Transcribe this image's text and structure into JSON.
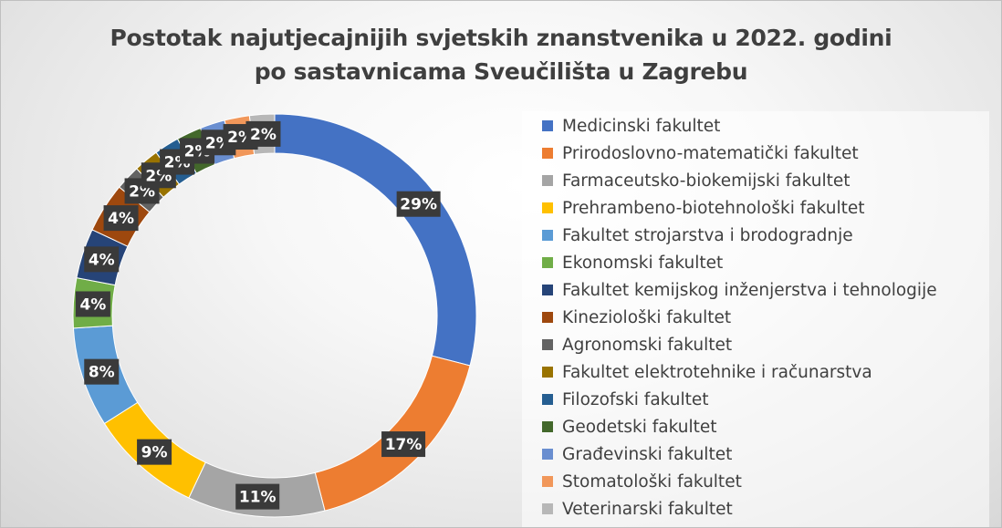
{
  "title": {
    "line1": "Postotak najutjecajnijih  svjetskih znanstvenika u 2022. godini",
    "line2": "po sastavnicama Sveučilišta u Zagrebu"
  },
  "chart_data": {
    "type": "pie",
    "variant": "doughnut",
    "title": "Postotak najutjecajnijih  svjetskih znanstvenika u 2022. godini po sastavnicama Sveučilišta u Zagrebu",
    "legend_position": "right",
    "categories": [
      "Medicinski fakultet",
      "Prirodoslovno-matematički fakultet",
      "Farmaceutsko-biokemijski fakultet",
      "Prehrambeno-biotehnološki fakultet",
      "Fakultet strojarstva i brodogradnje",
      "Ekonomski fakultet",
      "Fakultet kemijskog inženjerstva i tehnologije",
      "Kineziološki fakultet",
      "Agronomski fakultet",
      "Fakultet elektrotehnike i računarstva",
      "Filozofski fakultet",
      "Geodetski fakultet",
      "Građevinski fakultet",
      "Stomatološki fakultet",
      "Veterinarski fakultet"
    ],
    "values": [
      29,
      17,
      11,
      9,
      8,
      4,
      4,
      4,
      2,
      2,
      2,
      2,
      2,
      2,
      2
    ],
    "labels": [
      "29%",
      "17%",
      "11%",
      "9%",
      "8%",
      "4%",
      "4%",
      "4%",
      "2%",
      "2%",
      "2%",
      "2%",
      "2%",
      "2%",
      "2%"
    ],
    "colors": [
      "#4472C4",
      "#ED7D31",
      "#A5A5A5",
      "#FFC000",
      "#5B9BD5",
      "#70AD47",
      "#264478",
      "#9E480E",
      "#636363",
      "#997300",
      "#255E91",
      "#43682B",
      "#698ED0",
      "#F1975A",
      "#B7B7B7"
    ]
  }
}
